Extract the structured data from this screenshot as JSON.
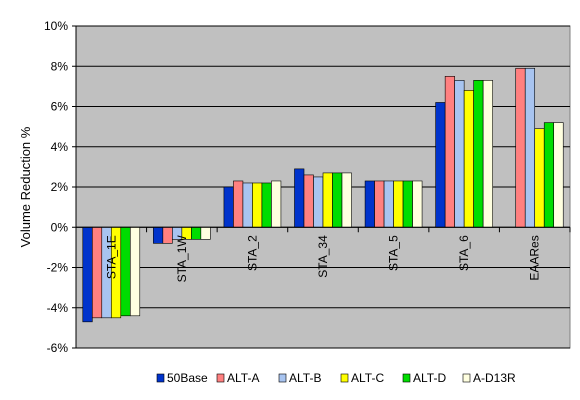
{
  "chart_data": {
    "type": "bar",
    "title": "",
    "xlabel": "",
    "ylabel": "Volume Reduction %",
    "ylim": [
      -6,
      10
    ],
    "y_ticks": [
      -6,
      -4,
      -2,
      0,
      2,
      4,
      6,
      8,
      10
    ],
    "y_tick_labels": [
      "-6%",
      "-4%",
      "-2%",
      "0%",
      "2%",
      "4%",
      "6%",
      "8%",
      "10%"
    ],
    "grid": true,
    "legend_position": "bottom",
    "categories": [
      "STA_1E",
      "STA_1W",
      "STA_2",
      "STA_34",
      "STA_5",
      "STA_6",
      "EAARes"
    ],
    "series": [
      {
        "name": "50Base",
        "color": "#0033CC",
        "values": [
          -4.7,
          -0.8,
          2.0,
          2.9,
          2.3,
          6.2,
          null
        ]
      },
      {
        "name": "ALT-A",
        "color": "#FF8080",
        "values": [
          -4.5,
          -0.8,
          2.3,
          2.6,
          2.3,
          7.5,
          7.9
        ]
      },
      {
        "name": "ALT-B",
        "color": "#A8C4F0",
        "values": [
          -4.5,
          -0.6,
          2.2,
          2.5,
          2.3,
          7.3,
          7.9
        ]
      },
      {
        "name": "ALT-C",
        "color": "#FFFF00",
        "values": [
          -4.5,
          -0.6,
          2.2,
          2.7,
          2.3,
          6.8,
          4.9
        ]
      },
      {
        "name": "ALT-D",
        "color": "#00DD00",
        "values": [
          -4.4,
          -0.6,
          2.2,
          2.7,
          2.3,
          7.3,
          5.2
        ]
      },
      {
        "name": "A-D13R",
        "color": "#FFFFE0",
        "values": [
          -4.4,
          -0.6,
          2.3,
          2.7,
          2.3,
          7.3,
          5.2
        ]
      }
    ]
  },
  "plot_background": "#C0C0C0"
}
